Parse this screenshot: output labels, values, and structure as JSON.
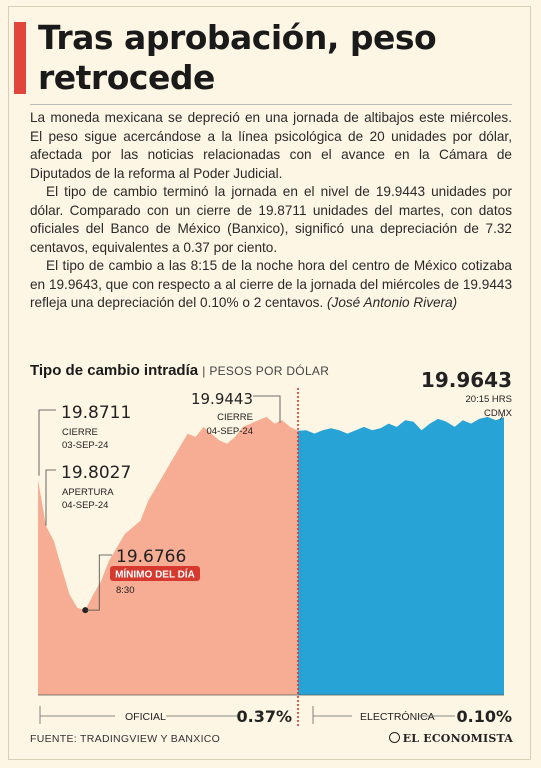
{
  "headline": "Tras aprobación, peso retrocede",
  "paragraphs": [
    "La moneda mexicana se depreció en una jornada de altibajos este miércoles. El peso sigue acercándose a la línea psicológica de 20 unidades por dólar, afectada por las noticias relacionadas con el avance en la Cámara de Diputados de la reforma al Poder Judicial.",
    "El tipo de cambio terminó la jornada en el nivel de 19.9443 unidades por dólar. Comparado con un cierre de 19.8711 unidades del martes, con datos oficiales del Banco de México (Banxico), significó una depreciación de 7.32 centavos, equivalentes a 0.37 por ciento.",
    "El tipo de cambio a las 8:15 de la noche hora del centro de México cotizaba en 19.9643, que con respecto a al cierre de la jornada del miércoles de 19.9443 refleja una depreciación del 0.10% o 2 centavos."
  ],
  "credit": "(José Antonio Rivera)",
  "chart_title": "Tipo de cambio intradía",
  "chart_subtitle": "| PESOS POR DÓLAR",
  "chart_data": {
    "type": "area",
    "title": "Tipo de cambio intradía",
    "ylabel": "PESOS POR DÓLAR",
    "ylim": [
      19.55,
      20.02
    ],
    "series": [
      {
        "name": "OFICIAL",
        "color": "#f6ad93",
        "values": [
          19.8711,
          19.8027,
          19.78,
          19.74,
          19.7,
          19.68,
          19.6766,
          19.7,
          19.72,
          19.75,
          19.77,
          19.79,
          19.8,
          19.81,
          19.84,
          19.86,
          19.88,
          19.9,
          19.92,
          19.94,
          19.935,
          19.95,
          19.94,
          19.93,
          19.925,
          19.935,
          19.95,
          19.955,
          19.96,
          19.965,
          19.955,
          19.96,
          19.95,
          19.9443
        ]
      },
      {
        "name": "ELECTRÓNICA",
        "color": "#27a3d6",
        "values": [
          19.9443,
          19.945,
          19.94,
          19.945,
          19.948,
          19.945,
          19.94,
          19.945,
          19.95,
          19.945,
          19.948,
          19.955,
          19.95,
          19.96,
          19.958,
          19.945,
          19.955,
          19.962,
          19.958,
          19.95,
          19.96,
          19.955,
          19.962,
          19.965,
          19.96,
          19.9643
        ]
      }
    ],
    "annotations": [
      {
        "value": "19.8711",
        "lines": [
          "CIERRE",
          "03-SEP-24"
        ]
      },
      {
        "value": "19.8027",
        "lines": [
          "APERTURA",
          "04-SEP-24"
        ]
      },
      {
        "value": "19.6766",
        "tag": "MÍNIMO DEL DÍA",
        "lines": [
          "8:30"
        ]
      },
      {
        "value": "19.9443",
        "lines": [
          "CIERRE",
          "04-SEP-24"
        ]
      },
      {
        "value": "19.9643",
        "lines": [
          "20:15 HRS",
          "CDMX"
        ]
      }
    ],
    "footer": [
      {
        "label": "OFICIAL",
        "pct": "0.37%"
      },
      {
        "label": "ELECTRÓNICA",
        "pct": "0.10%"
      }
    ]
  },
  "source": "FUENTE: TRADINGVIEW Y BANXICO",
  "logo": "EL ECONOMISTA",
  "colors": {
    "accent": "#e0463b",
    "oficial": "#f6ad93",
    "electronica": "#27a3d6",
    "tag": "#d63a2f"
  }
}
